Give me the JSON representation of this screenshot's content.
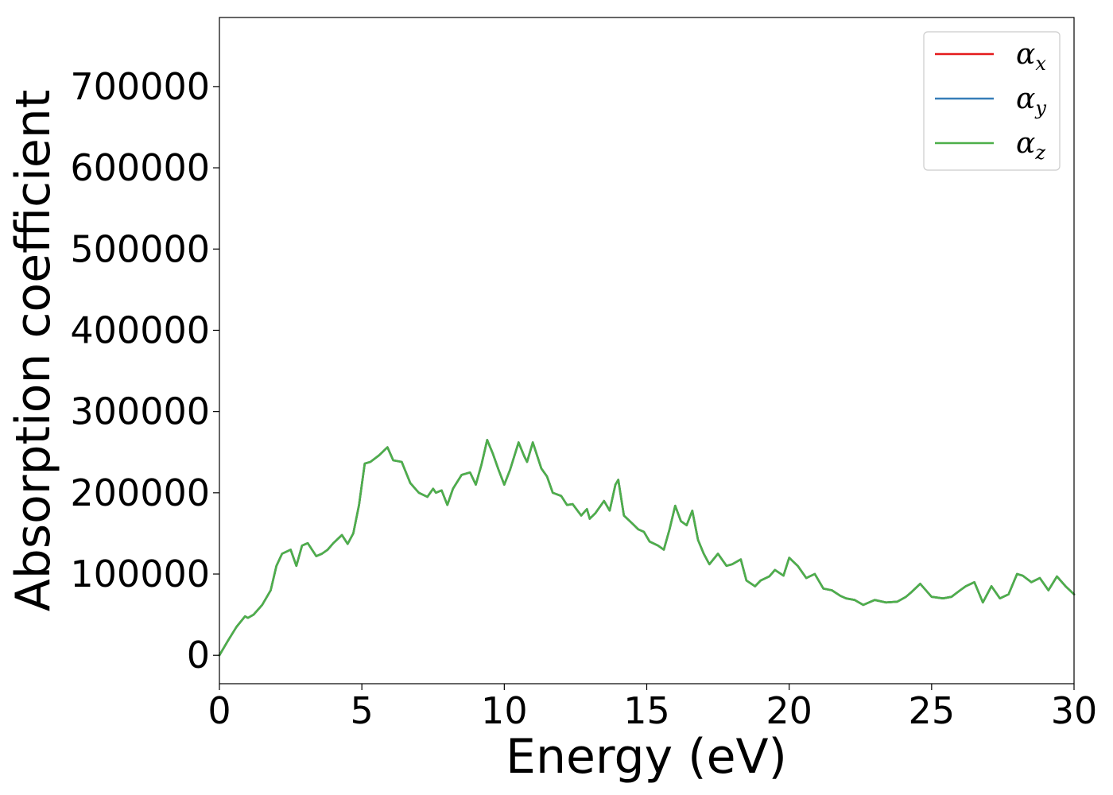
{
  "chart_data": {
    "type": "line",
    "xlabel": "Energy (eV)",
    "ylabel": "Absorption coefficient",
    "xlim": [
      0,
      30
    ],
    "ylim": [
      -35000,
      785000
    ],
    "xticks": [
      0,
      5,
      10,
      15,
      20,
      25,
      30
    ],
    "yticks": [
      0,
      100000,
      200000,
      300000,
      400000,
      500000,
      600000,
      700000
    ],
    "xtick_labels": [
      "0",
      "5",
      "10",
      "15",
      "20",
      "25",
      "30"
    ],
    "ytick_labels": [
      "0",
      "100000",
      "200000",
      "300000",
      "400000",
      "500000",
      "600000",
      "700000"
    ],
    "grid": false,
    "legend_position": "top-right",
    "legend": [
      {
        "symbol": "α",
        "sub": "x",
        "color": "#e41a1c"
      },
      {
        "symbol": "α",
        "sub": "y",
        "color": "#377eb8"
      },
      {
        "symbol": "α",
        "sub": "z",
        "color": "#4daf4a"
      }
    ],
    "x": [
      0,
      0.3,
      0.6,
      0.9,
      1.0,
      1.2,
      1.5,
      1.8,
      2.0,
      2.2,
      2.5,
      2.7,
      2.9,
      3.1,
      3.4,
      3.6,
      3.8,
      4.0,
      4.3,
      4.5,
      4.7,
      4.9,
      5.1,
      5.3,
      5.6,
      5.9,
      6.0,
      6.1,
      6.4,
      6.7,
      7.0,
      7.3,
      7.5,
      7.6,
      7.8,
      8.0,
      8.2,
      8.5,
      8.8,
      9.0,
      9.2,
      9.4,
      9.6,
      9.8,
      10.0,
      10.2,
      10.5,
      10.7,
      10.8,
      11.0,
      11.3,
      11.5,
      11.7,
      12.0,
      12.2,
      12.4,
      12.7,
      12.9,
      13.0,
      13.2,
      13.5,
      13.7,
      13.9,
      14.0,
      14.2,
      14.5,
      14.7,
      14.9,
      15.1,
      15.4,
      15.6,
      15.8,
      16.0,
      16.2,
      16.4,
      16.6,
      16.8,
      17.0,
      17.2,
      17.5,
      17.8,
      18.0,
      18.3,
      18.5,
      18.8,
      19.0,
      19.3,
      19.5,
      19.8,
      20.0,
      20.3,
      20.6,
      20.9,
      21.2,
      21.5,
      21.8,
      22.0,
      22.3,
      22.6,
      23.0,
      23.4,
      23.8,
      24.1,
      24.3,
      24.6,
      25.0,
      25.4,
      25.7,
      26.0,
      26.2,
      26.5,
      26.8,
      27.1,
      27.4,
      27.7,
      28.0,
      28.2,
      28.5,
      28.8,
      29.1,
      29.4,
      29.7,
      30.0
    ],
    "series": [
      {
        "name": "αx",
        "color": "#e41a1c",
        "values": [
          0,
          18000,
          35000,
          48000,
          46000,
          50000,
          62000,
          80000,
          110000,
          125000,
          130000,
          110000,
          135000,
          138000,
          122000,
          125000,
          130000,
          138000,
          148000,
          137000,
          150000,
          185000,
          236000,
          238000,
          246000,
          256000,
          248000,
          240000,
          238000,
          212000,
          200000,
          195000,
          205000,
          200000,
          203000,
          185000,
          205000,
          222000,
          225000,
          210000,
          235000,
          265000,
          248000,
          228000,
          210000,
          228000,
          262000,
          245000,
          238000,
          262000,
          230000,
          220000,
          200000,
          196000,
          185000,
          186000,
          172000,
          180000,
          168000,
          175000,
          190000,
          178000,
          210000,
          216000,
          172000,
          162000,
          155000,
          152000,
          140000,
          135000,
          130000,
          155000,
          184000,
          165000,
          160000,
          178000,
          142000,
          125000,
          112000,
          125000,
          110000,
          112000,
          118000,
          92000,
          85000,
          92000,
          97000,
          105000,
          98000,
          120000,
          110000,
          95000,
          100000,
          82000,
          80000,
          73000,
          70000,
          68000,
          62000,
          68000,
          65000,
          66000,
          72000,
          78000,
          88000,
          72000,
          70000,
          72000,
          80000,
          85000,
          90000,
          65000,
          85000,
          70000,
          75000,
          100000,
          98000,
          90000,
          95000,
          80000,
          97000,
          85000,
          75000
        ]
      },
      {
        "name": "αy",
        "color": "#377eb8",
        "values": [
          0,
          18000,
          35000,
          48000,
          46000,
          50000,
          62000,
          80000,
          110000,
          125000,
          130000,
          110000,
          135000,
          138000,
          122000,
          125000,
          130000,
          138000,
          148000,
          137000,
          150000,
          185000,
          236000,
          238000,
          246000,
          256000,
          248000,
          240000,
          238000,
          212000,
          200000,
          195000,
          205000,
          200000,
          203000,
          185000,
          205000,
          222000,
          225000,
          210000,
          235000,
          265000,
          248000,
          228000,
          210000,
          228000,
          262000,
          245000,
          238000,
          262000,
          230000,
          220000,
          200000,
          196000,
          185000,
          186000,
          172000,
          180000,
          168000,
          175000,
          190000,
          178000,
          210000,
          216000,
          172000,
          162000,
          155000,
          152000,
          140000,
          135000,
          130000,
          155000,
          184000,
          165000,
          160000,
          178000,
          142000,
          125000,
          112000,
          125000,
          110000,
          112000,
          118000,
          92000,
          85000,
          92000,
          97000,
          105000,
          98000,
          120000,
          110000,
          95000,
          100000,
          82000,
          80000,
          73000,
          70000,
          68000,
          62000,
          68000,
          65000,
          66000,
          72000,
          78000,
          88000,
          72000,
          70000,
          72000,
          80000,
          85000,
          90000,
          65000,
          85000,
          70000,
          75000,
          100000,
          98000,
          90000,
          95000,
          80000,
          97000,
          85000,
          75000
        ]
      },
      {
        "name": "αz",
        "color": "#4daf4a",
        "values": [
          0,
          18000,
          35000,
          48000,
          46000,
          50000,
          62000,
          80000,
          110000,
          125000,
          130000,
          110000,
          135000,
          138000,
          122000,
          125000,
          130000,
          138000,
          148000,
          137000,
          150000,
          185000,
          236000,
          238000,
          246000,
          256000,
          248000,
          240000,
          238000,
          212000,
          200000,
          195000,
          205000,
          200000,
          203000,
          185000,
          205000,
          222000,
          225000,
          210000,
          235000,
          265000,
          248000,
          228000,
          210000,
          228000,
          262000,
          245000,
          238000,
          262000,
          230000,
          220000,
          200000,
          196000,
          185000,
          186000,
          172000,
          180000,
          168000,
          175000,
          190000,
          178000,
          210000,
          216000,
          172000,
          162000,
          155000,
          152000,
          140000,
          135000,
          130000,
          155000,
          184000,
          165000,
          160000,
          178000,
          142000,
          125000,
          112000,
          125000,
          110000,
          112000,
          118000,
          92000,
          85000,
          92000,
          97000,
          105000,
          98000,
          120000,
          110000,
          95000,
          100000,
          82000,
          80000,
          73000,
          70000,
          68000,
          62000,
          68000,
          65000,
          66000,
          72000,
          78000,
          88000,
          72000,
          70000,
          72000,
          80000,
          85000,
          90000,
          65000,
          85000,
          70000,
          75000,
          100000,
          98000,
          90000,
          95000,
          80000,
          97000,
          85000,
          75000
        ]
      }
    ]
  }
}
